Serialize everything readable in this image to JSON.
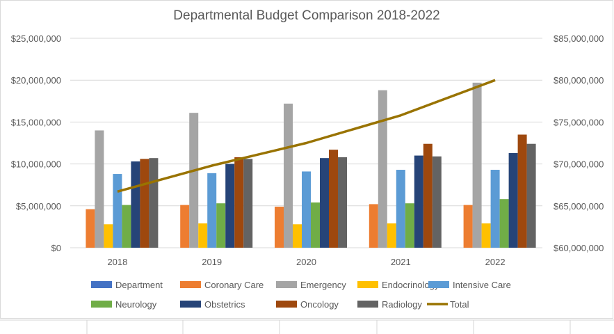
{
  "chart_data": {
    "type": "bar",
    "title": "Departmental Budget Comparison 2018-2022",
    "categories": [
      "2018",
      "2019",
      "2020",
      "2021",
      "2022"
    ],
    "y_left": {
      "ylim": [
        0,
        25000000
      ],
      "ticks": [
        "$0",
        "$5,000,000",
        "$10,000,000",
        "$15,000,000",
        "$20,000,000",
        "$25,000,000"
      ]
    },
    "y_right": {
      "ylim": [
        60000000,
        85000000
      ],
      "ticks": [
        "$60,000,000",
        "$65,000,000",
        "$70,000,000",
        "$75,000,000",
        "$80,000,000",
        "$85,000,000"
      ]
    },
    "grid": true,
    "legend_position": "bottom",
    "series": [
      {
        "name": "Department",
        "color": "#4472C4",
        "values": [
          0,
          0,
          0,
          0,
          0
        ]
      },
      {
        "name": "Coronary Care",
        "color": "#ED7D31",
        "values": [
          4600000,
          5100000,
          4900000,
          5200000,
          5100000
        ]
      },
      {
        "name": "Emergency",
        "color": "#A5A5A5",
        "values": [
          14000000,
          16100000,
          17200000,
          18800000,
          19700000
        ]
      },
      {
        "name": "Endocrinology",
        "color": "#FFC000",
        "values": [
          2800000,
          2900000,
          2800000,
          2900000,
          2900000
        ]
      },
      {
        "name": "Intensive Care",
        "color": "#5B9BD5",
        "values": [
          8800000,
          8900000,
          9100000,
          9300000,
          9300000
        ]
      },
      {
        "name": "Neurology",
        "color": "#70AD47",
        "values": [
          5100000,
          5300000,
          5400000,
          5300000,
          5800000
        ]
      },
      {
        "name": "Obstetrics",
        "color": "#264478",
        "values": [
          10300000,
          10000000,
          10700000,
          11000000,
          11300000
        ]
      },
      {
        "name": "Oncology",
        "color": "#9E480E",
        "values": [
          10600000,
          10800000,
          11700000,
          12400000,
          13500000
        ]
      },
      {
        "name": "Radiology",
        "color": "#636363",
        "values": [
          10700000,
          10600000,
          10800000,
          10900000,
          12400000
        ]
      },
      {
        "name": "Total",
        "color": "#997300",
        "type": "line",
        "axis": "right",
        "values": [
          66700000,
          69800000,
          72500000,
          75800000,
          80000000
        ]
      }
    ]
  }
}
